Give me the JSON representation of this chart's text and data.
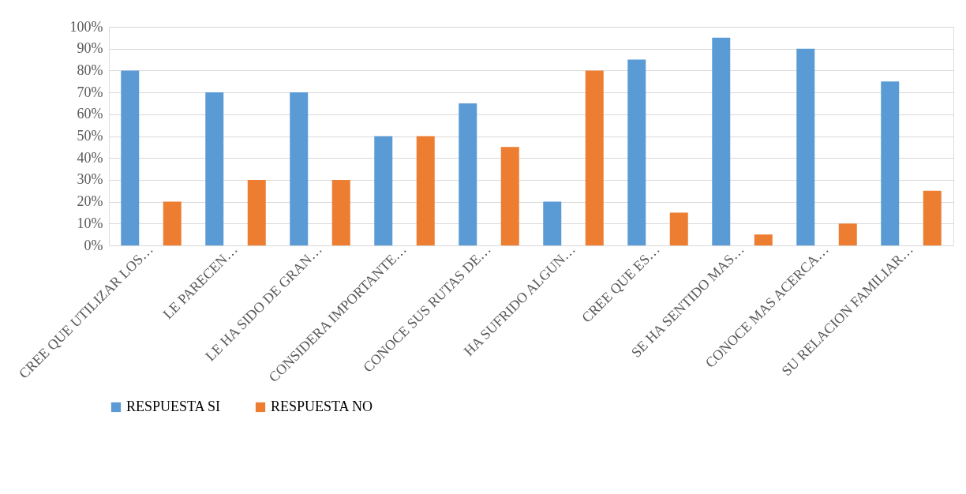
{
  "chart_data": {
    "type": "bar",
    "categories": [
      "CREE QUE UTILIZAR LOS…",
      "LE PARECEN…",
      "LE HA SIDO DE GRAN…",
      "CONSIDERA IMPORTANTE…",
      "CONOCE SUS RUTAS DE…",
      "HA SUFRIDO ALGUN…",
      "CREE QUE ES…",
      "SE HA SENTIDO MAS…",
      "CONOCE MAS ACERCA…",
      "SU RELACION FAMILIAR…"
    ],
    "series": [
      {
        "name": "RESPUESTA SI",
        "color": "#5b9bd5",
        "values": [
          80,
          70,
          70,
          50,
          65,
          20,
          85,
          95,
          90,
          75
        ]
      },
      {
        "name": "RESPUESTA NO",
        "color": "#ed7d31",
        "values": [
          20,
          30,
          30,
          50,
          45,
          80,
          15,
          5,
          10,
          25
        ]
      }
    ],
    "ylim": [
      0,
      100
    ],
    "yticks": [
      {
        "value": 0,
        "label": "0%"
      },
      {
        "value": 10,
        "label": "10%"
      },
      {
        "value": 20,
        "label": "20%"
      },
      {
        "value": 30,
        "label": "30%"
      },
      {
        "value": 40,
        "label": "40%"
      },
      {
        "value": 50,
        "label": "50%"
      },
      {
        "value": 60,
        "label": "60%"
      },
      {
        "value": 70,
        "label": "70%"
      },
      {
        "value": 80,
        "label": "80%"
      },
      {
        "value": 90,
        "label": "90%"
      },
      {
        "value": 100,
        "label": "100%"
      }
    ],
    "grid": "y",
    "legend": "bottom"
  }
}
